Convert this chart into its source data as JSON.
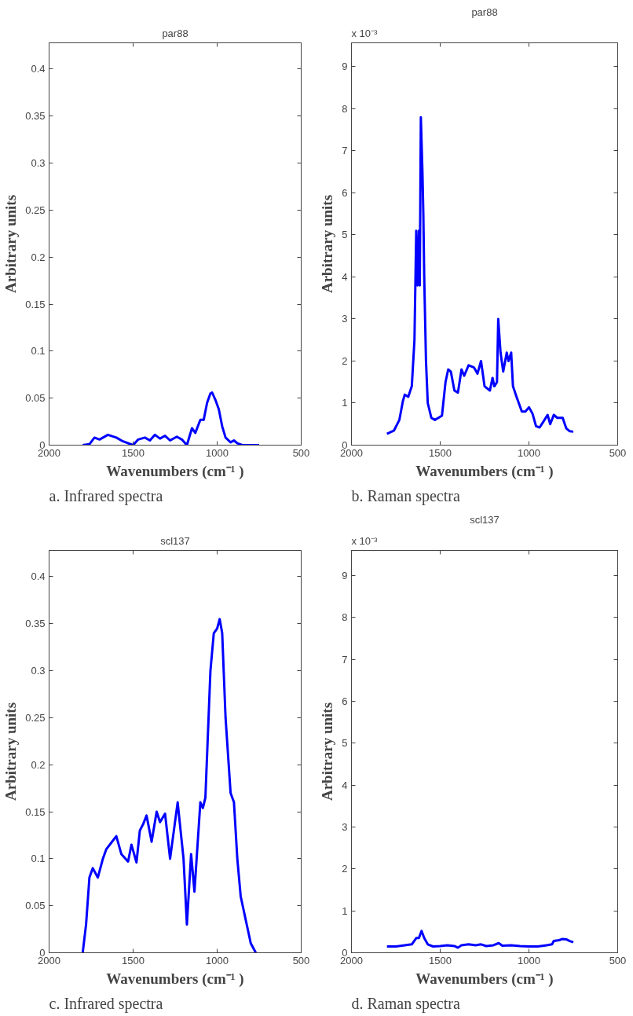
{
  "chart_data": [
    {
      "type": "line",
      "title": "par88",
      "xlabel": "Wavenumbers (cm⁻¹ )",
      "ylabel": "Arbitrary units",
      "annotations": [
        "a.  Infrared spectra"
      ],
      "xlim": [
        2000,
        500
      ],
      "xticks": [
        2000,
        1500,
        1000,
        500
      ],
      "ylim": [
        0,
        0.428
      ],
      "yticks": [
        0,
        0.05,
        0.1,
        0.15,
        0.2,
        0.25,
        0.3,
        0.35,
        0.4
      ],
      "grid": false,
      "line_style": "solid",
      "series": [
        {
          "color": "#0000ff",
          "x": [
            1800,
            1760,
            1730,
            1700,
            1650,
            1600,
            1560,
            1500,
            1470,
            1430,
            1400,
            1370,
            1340,
            1310,
            1280,
            1240,
            1210,
            1180,
            1150,
            1130,
            1100,
            1080,
            1060,
            1040,
            1030,
            1010,
            990,
            970,
            950,
            920,
            900,
            880,
            850,
            750
          ],
          "values": [
            0,
            0.001,
            0.008,
            0.006,
            0.011,
            0.008,
            0.004,
            0.0,
            0.006,
            0.008,
            0.005,
            0.011,
            0.007,
            0.01,
            0.005,
            0.009,
            0.006,
            0.0,
            0.018,
            0.013,
            0.027,
            0.027,
            0.045,
            0.055,
            0.056,
            0.048,
            0.038,
            0.02,
            0.008,
            0.003,
            0.005,
            0.002,
            0.0,
            0.0
          ]
        }
      ]
    },
    {
      "type": "line",
      "title": "par88",
      "xlabel": "Wavenumbers (cm⁻¹ )",
      "ylabel": "Arbitrary units",
      "annotations": [
        "x 10⁻³",
        "b.  Raman spectra"
      ],
      "xlim": [
        2000,
        500
      ],
      "xticks": [
        2000,
        1500,
        1000,
        500
      ],
      "ylim": [
        0,
        9.57
      ],
      "yticks": [
        0,
        1,
        2,
        3,
        4,
        5,
        6,
        7,
        8,
        9
      ],
      "grid": false,
      "line_style": "solid",
      "series": [
        {
          "color": "#0000ff",
          "x": [
            1800,
            1760,
            1730,
            1710,
            1700,
            1680,
            1660,
            1645,
            1635,
            1628,
            1620,
            1615,
            1609,
            1600,
            1595,
            1590,
            1580,
            1570,
            1550,
            1530,
            1510,
            1490,
            1470,
            1455,
            1440,
            1420,
            1400,
            1380,
            1365,
            1340,
            1310,
            1290,
            1270,
            1250,
            1220,
            1205,
            1195,
            1180,
            1173,
            1160,
            1145,
            1125,
            1115,
            1100,
            1090,
            1070,
            1040,
            1020,
            1000,
            980,
            960,
            940,
            920,
            895,
            880,
            860,
            840,
            810,
            790,
            770,
            750
          ],
          "values": [
            0.27,
            0.35,
            0.6,
            1.05,
            1.2,
            1.15,
            1.4,
            2.5,
            5.1,
            3.8,
            5.1,
            3.8,
            7.8,
            6.5,
            5.5,
            4.0,
            2.0,
            1.0,
            0.65,
            0.6,
            0.65,
            0.7,
            1.5,
            1.8,
            1.75,
            1.3,
            1.25,
            1.8,
            1.65,
            1.9,
            1.85,
            1.7,
            2.0,
            1.4,
            1.3,
            1.6,
            1.4,
            1.5,
            3.0,
            2.2,
            1.75,
            2.2,
            2.0,
            2.2,
            1.4,
            1.15,
            0.8,
            0.8,
            0.9,
            0.75,
            0.45,
            0.42,
            0.55,
            0.72,
            0.5,
            0.72,
            0.65,
            0.65,
            0.4,
            0.33,
            0.32
          ]
        }
      ]
    },
    {
      "type": "line",
      "title": "scl137",
      "xlabel": "Wavenumbers (cm⁻¹ )",
      "ylabel": "Arbitrary units",
      "annotations": [
        "c.  Infrared spectra"
      ],
      "xlim": [
        2000,
        500
      ],
      "xticks": [
        2000,
        1500,
        1000,
        500
      ],
      "ylim": [
        0,
        0.428
      ],
      "yticks": [
        0,
        0.05,
        0.1,
        0.15,
        0.2,
        0.25,
        0.3,
        0.35,
        0.4
      ],
      "grid": false,
      "line_style": "solid",
      "series": [
        {
          "color": "#0000ff",
          "x": [
            1800,
            1780,
            1760,
            1740,
            1710,
            1680,
            1660,
            1630,
            1600,
            1570,
            1530,
            1510,
            1480,
            1460,
            1440,
            1420,
            1390,
            1360,
            1340,
            1310,
            1280,
            1235,
            1200,
            1180,
            1155,
            1135,
            1100,
            1085,
            1070,
            1040,
            1020,
            1000,
            985,
            970,
            950,
            920,
            900,
            880,
            860,
            830,
            800,
            770
          ],
          "values": [
            0,
            0.03,
            0.08,
            0.09,
            0.08,
            0.1,
            0.11,
            0.117,
            0.124,
            0.105,
            0.097,
            0.115,
            0.096,
            0.13,
            0.137,
            0.146,
            0.118,
            0.15,
            0.139,
            0.148,
            0.1,
            0.16,
            0.1,
            0.03,
            0.105,
            0.065,
            0.16,
            0.154,
            0.165,
            0.3,
            0.34,
            0.345,
            0.355,
            0.34,
            0.25,
            0.17,
            0.16,
            0.1,
            0.06,
            0.035,
            0.01,
            0.0
          ]
        }
      ]
    },
    {
      "type": "line",
      "title": "scl137",
      "xlabel": "Wavenumbers (cm⁻¹ )",
      "ylabel": "Arbitrary units",
      "annotations": [
        "x 10⁻³",
        "d.  Raman spectra"
      ],
      "xlim": [
        2000,
        500
      ],
      "xticks": [
        2000,
        1500,
        1000,
        500
      ],
      "ylim": [
        0,
        9.6
      ],
      "yticks": [
        0,
        1,
        2,
        3,
        4,
        5,
        6,
        7,
        8,
        9
      ],
      "grid": false,
      "line_style": "solid",
      "series": [
        {
          "color": "#0000ff",
          "x": [
            1800,
            1750,
            1700,
            1660,
            1635,
            1620,
            1605,
            1590,
            1570,
            1540,
            1500,
            1460,
            1420,
            1400,
            1380,
            1340,
            1300,
            1270,
            1240,
            1200,
            1170,
            1150,
            1100,
            1050,
            1000,
            950,
            900,
            870,
            860,
            830,
            810,
            790,
            770,
            750
          ],
          "values": [
            0.15,
            0.15,
            0.18,
            0.2,
            0.35,
            0.35,
            0.52,
            0.35,
            0.2,
            0.15,
            0.16,
            0.18,
            0.16,
            0.12,
            0.18,
            0.2,
            0.18,
            0.2,
            0.16,
            0.18,
            0.23,
            0.17,
            0.18,
            0.16,
            0.15,
            0.15,
            0.18,
            0.2,
            0.28,
            0.3,
            0.33,
            0.32,
            0.28,
            0.25
          ]
        }
      ]
    }
  ]
}
